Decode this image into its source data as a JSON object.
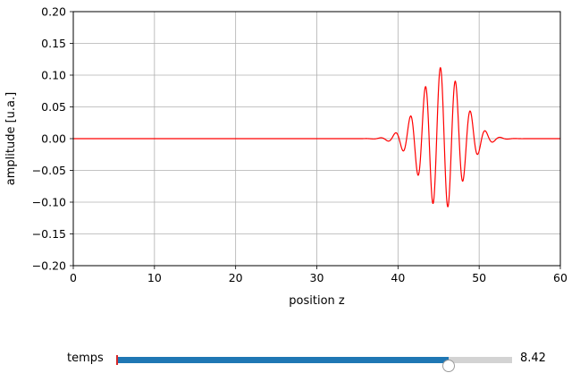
{
  "chart_data": {
    "type": "line",
    "title": "",
    "xlabel": "position z",
    "ylabel": "amplitude [u.a.]",
    "xlim": [
      0,
      60
    ],
    "ylim": [
      -0.2,
      0.2
    ],
    "xticks": [
      0,
      10,
      20,
      30,
      40,
      50,
      60
    ],
    "xtick_labels": [
      "0",
      "10",
      "20",
      "30",
      "40",
      "50",
      "60"
    ],
    "yticks": [
      -0.2,
      -0.15,
      -0.1,
      -0.05,
      0.0,
      0.05,
      0.1,
      0.15,
      0.2
    ],
    "ytick_labels": [
      "−0.20",
      "−0.15",
      "−0.10",
      "−0.05",
      "0.00",
      "0.05",
      "0.10",
      "0.15",
      "0.20"
    ],
    "grid": true,
    "series": [
      {
        "color": "#ff0000",
        "wave_packet": {
          "center": 45.4,
          "amplitude": 0.112,
          "envelope_width": 3.6,
          "wavelength": 1.85,
          "phase": 0.6
        },
        "sample_range": [
          0,
          60
        ]
      }
    ]
  },
  "slider": {
    "label": "temps",
    "value_text": "8.42",
    "fraction": 0.84,
    "fill_color": "#1f77b4",
    "initial_marker_color": "#d62728"
  }
}
